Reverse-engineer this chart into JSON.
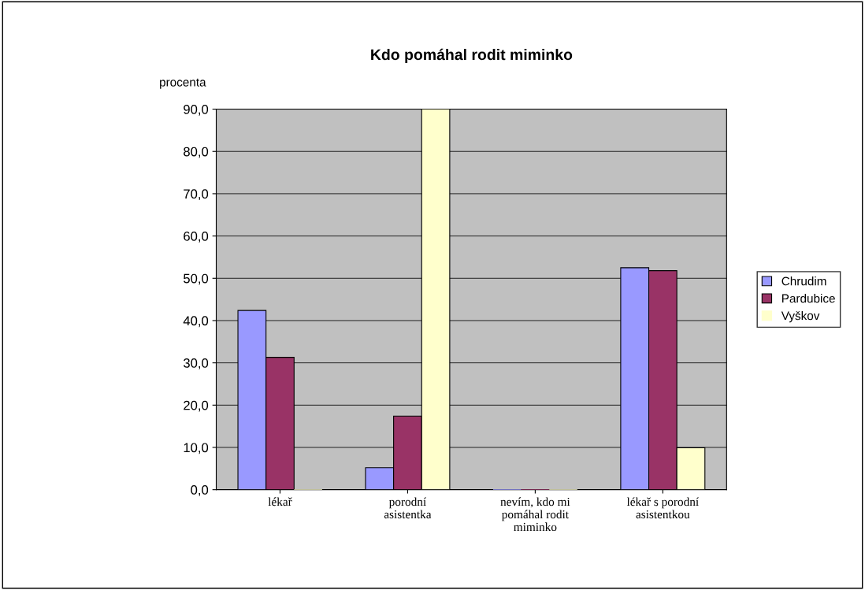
{
  "chart_data": {
    "type": "bar",
    "title": "Kdo pomáhal rodit miminko",
    "ylabel": "procenta",
    "categories": [
      "lékař",
      "porodní asistentka",
      "nevím, kdo mi pomáhal rodit miminko",
      "lékař s porodní asistentkou"
    ],
    "series": [
      {
        "name": "Chrudim",
        "color": "#9999ff",
        "values": [
          42.4,
          5.2,
          0,
          52.5
        ]
      },
      {
        "name": "Pardubice",
        "color": "#993366",
        "values": [
          31.3,
          17.4,
          0,
          51.8
        ]
      },
      {
        "name": "Vyškov",
        "color": "#ffffcc",
        "values": [
          0,
          90,
          0,
          9.9
        ]
      }
    ],
    "ylim": [
      0,
      90
    ],
    "yticks": [
      {
        "value": 0,
        "label": "0,0"
      },
      {
        "value": 10,
        "label": "10,0"
      },
      {
        "value": 20,
        "label": "20,0"
      },
      {
        "value": 30,
        "label": "30,0"
      },
      {
        "value": 40,
        "label": "40,0"
      },
      {
        "value": 50,
        "label": "50,0"
      },
      {
        "value": 60,
        "label": "60,0"
      },
      {
        "value": 70,
        "label": "70,0"
      },
      {
        "value": 80,
        "label": "80,0"
      },
      {
        "value": 90,
        "label": "90,0"
      }
    ],
    "grid": "y",
    "legend": "right"
  }
}
